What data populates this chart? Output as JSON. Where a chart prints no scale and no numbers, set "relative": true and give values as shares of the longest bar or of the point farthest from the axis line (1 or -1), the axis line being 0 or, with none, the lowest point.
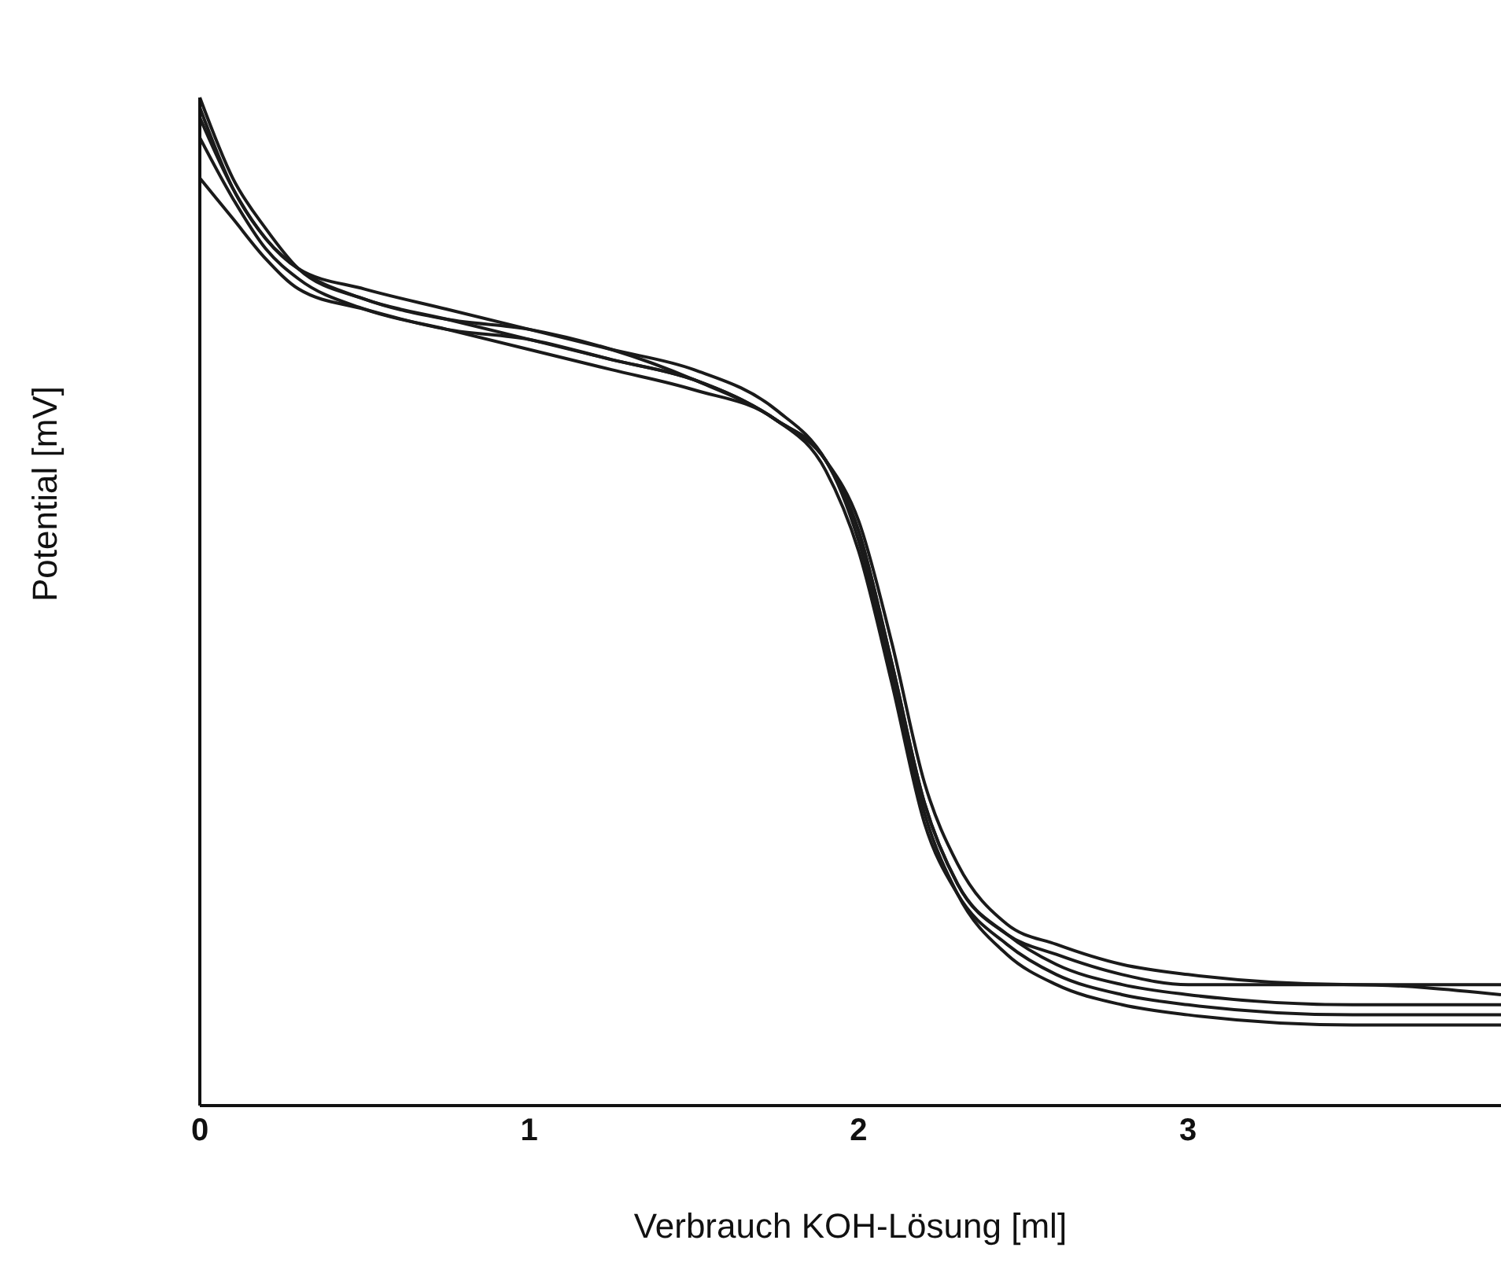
{
  "chart_data": {
    "type": "line",
    "relative": true,
    "xlabel": "Verbrauch KOH-Lösung [ml]",
    "ylabel": "Potential [mV]",
    "x": [
      0,
      0.1,
      0.2,
      0.3,
      0.5,
      0.75,
      1,
      1.25,
      1.5,
      1.75,
      1.9,
      2,
      2.1,
      2.2,
      2.3,
      2.45,
      2.6,
      2.8,
      3,
      3.5,
      3.95
    ],
    "xlim": [
      0,
      3.95
    ],
    "xticks": [
      0,
      1,
      2,
      3
    ],
    "grid": false,
    "legend": false,
    "marker": "none",
    "line_style": "solid",
    "series": [
      {
        "color": "#1a1a1a",
        "values": [
          1.0,
          0.92,
          0.87,
          0.83,
          0.8,
          0.78,
          0.77,
          0.75,
          0.72,
          0.68,
          0.64,
          0.58,
          0.46,
          0.32,
          0.24,
          0.18,
          0.16,
          0.14,
          0.13,
          0.12,
          0.12
        ]
      },
      {
        "color": "#1a1a1a",
        "values": [
          0.99,
          0.91,
          0.86,
          0.83,
          0.81,
          0.79,
          0.77,
          0.75,
          0.73,
          0.69,
          0.64,
          0.57,
          0.44,
          0.3,
          0.22,
          0.17,
          0.15,
          0.13,
          0.12,
          0.12,
          0.11
        ]
      },
      {
        "color": "#1a1a1a",
        "values": [
          0.98,
          0.91,
          0.86,
          0.83,
          0.8,
          0.78,
          0.76,
          0.74,
          0.72,
          0.68,
          0.64,
          0.57,
          0.44,
          0.3,
          0.22,
          0.17,
          0.14,
          0.12,
          0.11,
          0.1,
          0.1
        ]
      },
      {
        "color": "#1a1a1a",
        "values": [
          0.96,
          0.9,
          0.85,
          0.82,
          0.79,
          0.77,
          0.75,
          0.73,
          0.71,
          0.68,
          0.63,
          0.55,
          0.42,
          0.28,
          0.21,
          0.16,
          0.13,
          0.11,
          0.1,
          0.09,
          0.09
        ]
      },
      {
        "color": "#1a1a1a",
        "values": [
          0.92,
          0.88,
          0.84,
          0.81,
          0.79,
          0.77,
          0.76,
          0.74,
          0.72,
          0.68,
          0.64,
          0.56,
          0.43,
          0.29,
          0.21,
          0.15,
          0.12,
          0.1,
          0.09,
          0.08,
          0.08
        ]
      }
    ]
  }
}
